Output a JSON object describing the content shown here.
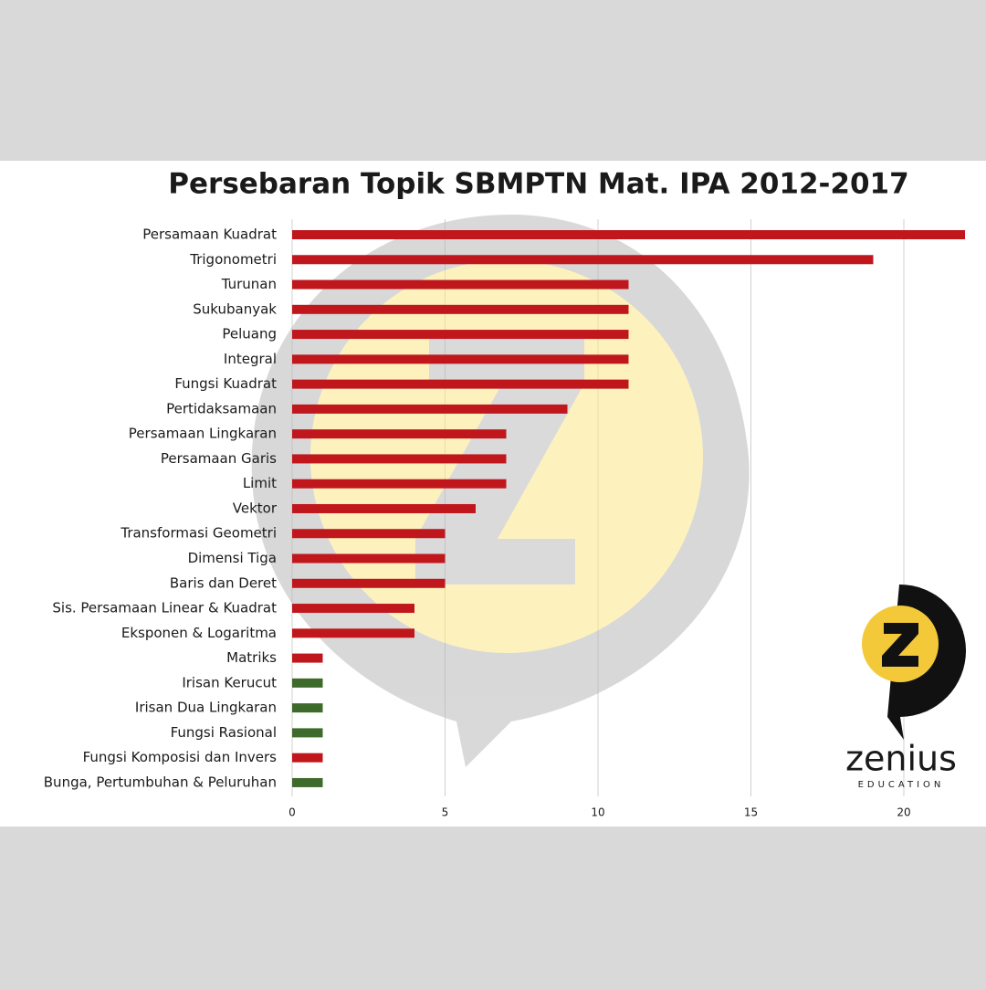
{
  "chart_data": {
    "type": "barh",
    "title": "Persebaran Topik SBMPTN Mat. IPA 2012-2017",
    "categories": [
      "Persamaan Kuadrat",
      "Trigonometri",
      "Turunan",
      "Sukubanyak",
      "Peluang",
      "Integral",
      "Fungsi Kuadrat",
      "Pertidaksamaan",
      "Persamaan Lingkaran",
      "Persamaan Garis",
      "Limit",
      "Vektor",
      "Transformasi Geometri",
      "Dimensi Tiga",
      "Baris dan Deret",
      "Sis. Persamaan Linear & Kuadrat",
      "Eksponen & Logaritma",
      "Matriks",
      "Irisan Kerucut",
      "Irisan Dua Lingkaran",
      "Fungsi Rasional",
      "Fungsi Komposisi dan Invers",
      "Bunga, Pertumbuhan & Peluruhan"
    ],
    "values": [
      22,
      19,
      11,
      11,
      11,
      11,
      11,
      9,
      7,
      7,
      7,
      6,
      5,
      5,
      5,
      4,
      4,
      1,
      1,
      1,
      1,
      1,
      1
    ],
    "colors": [
      "#c0171d",
      "#c0171d",
      "#c0171d",
      "#c0171d",
      "#c0171d",
      "#c0171d",
      "#c0171d",
      "#c0171d",
      "#c0171d",
      "#c0171d",
      "#c0171d",
      "#c0171d",
      "#c0171d",
      "#c0171d",
      "#c0171d",
      "#c0171d",
      "#c0171d",
      "#c0171d",
      "#3e6a2c",
      "#3e6a2c",
      "#3e6a2c",
      "#c0171d",
      "#3e6a2c"
    ],
    "xlim": [
      0,
      22
    ],
    "xticks": [
      0,
      5,
      10,
      15,
      20
    ],
    "grid": true
  },
  "logo": {
    "name": "zenius",
    "tagline": "EDUCATION"
  }
}
